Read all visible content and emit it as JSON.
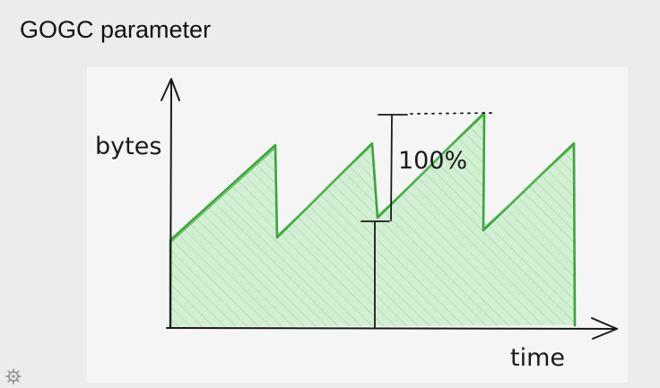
{
  "slide": {
    "title": "GOGC parameter"
  },
  "diagram": {
    "y_axis_label": "bytes",
    "x_axis_label": "time",
    "growth_label": "100%",
    "colors": {
      "fill": "#c9ecc9",
      "stroke": "#3aa63a",
      "ink": "#1a1a1a"
    }
  },
  "icons": {
    "corner": "gear-icon"
  }
}
